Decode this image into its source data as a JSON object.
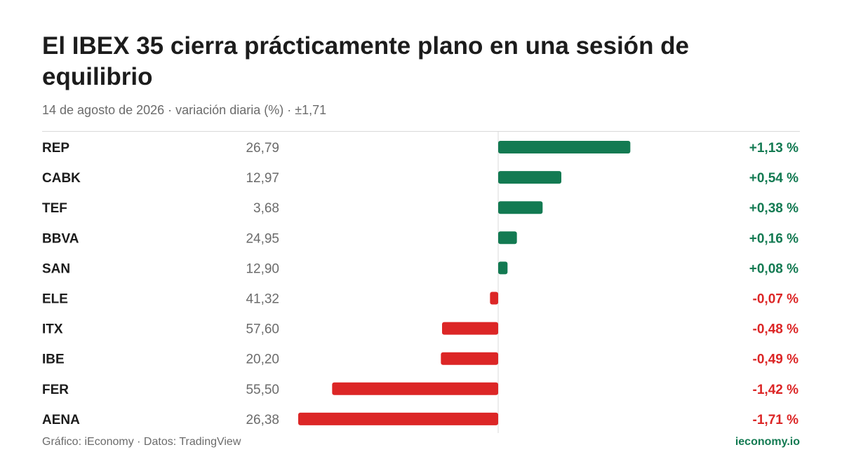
{
  "header": {
    "title": "El IBEX 35 cierra prácticamente plano en una sesión de equilibrio",
    "subtitle": "14 de agosto de 2026 · variación diaria (%) · ±1,71"
  },
  "footer": {
    "source": "Gráfico: iEconomy · Datos: TradingView",
    "brand": "ieconomy.io"
  },
  "colors": {
    "positive": "#137a52",
    "negative": "#dc2626",
    "ticker": "#1c1c1c",
    "price": "#6b6b6b",
    "axis": "#d9d9d9"
  },
  "chart_data": {
    "type": "bar",
    "orientation": "horizontal",
    "title": "El IBEX 35 cierra prácticamente plano en una sesión de equilibrio",
    "subtitle": "14 de agosto de 2026 · variación diaria (%) · ±1,71",
    "xlim": [
      -1.71,
      1.71
    ],
    "grid": false,
    "rows": [
      {
        "ticker": "REP",
        "price": "26,79",
        "value": 1.13,
        "label": "+1,13 %"
      },
      {
        "ticker": "CABK",
        "price": "12,97",
        "value": 0.54,
        "label": "+0,54 %"
      },
      {
        "ticker": "TEF",
        "price": "3,68",
        "value": 0.38,
        "label": "+0,38 %"
      },
      {
        "ticker": "BBVA",
        "price": "24,95",
        "value": 0.16,
        "label": "+0,16 %"
      },
      {
        "ticker": "SAN",
        "price": "12,90",
        "value": 0.08,
        "label": "+0,08 %"
      },
      {
        "ticker": "ELE",
        "price": "41,32",
        "value": -0.07,
        "label": "-0,07 %"
      },
      {
        "ticker": "ITX",
        "price": "57,60",
        "value": -0.48,
        "label": "-0,48 %"
      },
      {
        "ticker": "IBE",
        "price": "20,20",
        "value": -0.49,
        "label": "-0,49 %"
      },
      {
        "ticker": "FER",
        "price": "55,50",
        "value": -1.42,
        "label": "-1,42 %"
      },
      {
        "ticker": "AENA",
        "price": "26,38",
        "value": -1.71,
        "label": "-1,71 %"
      }
    ]
  }
}
